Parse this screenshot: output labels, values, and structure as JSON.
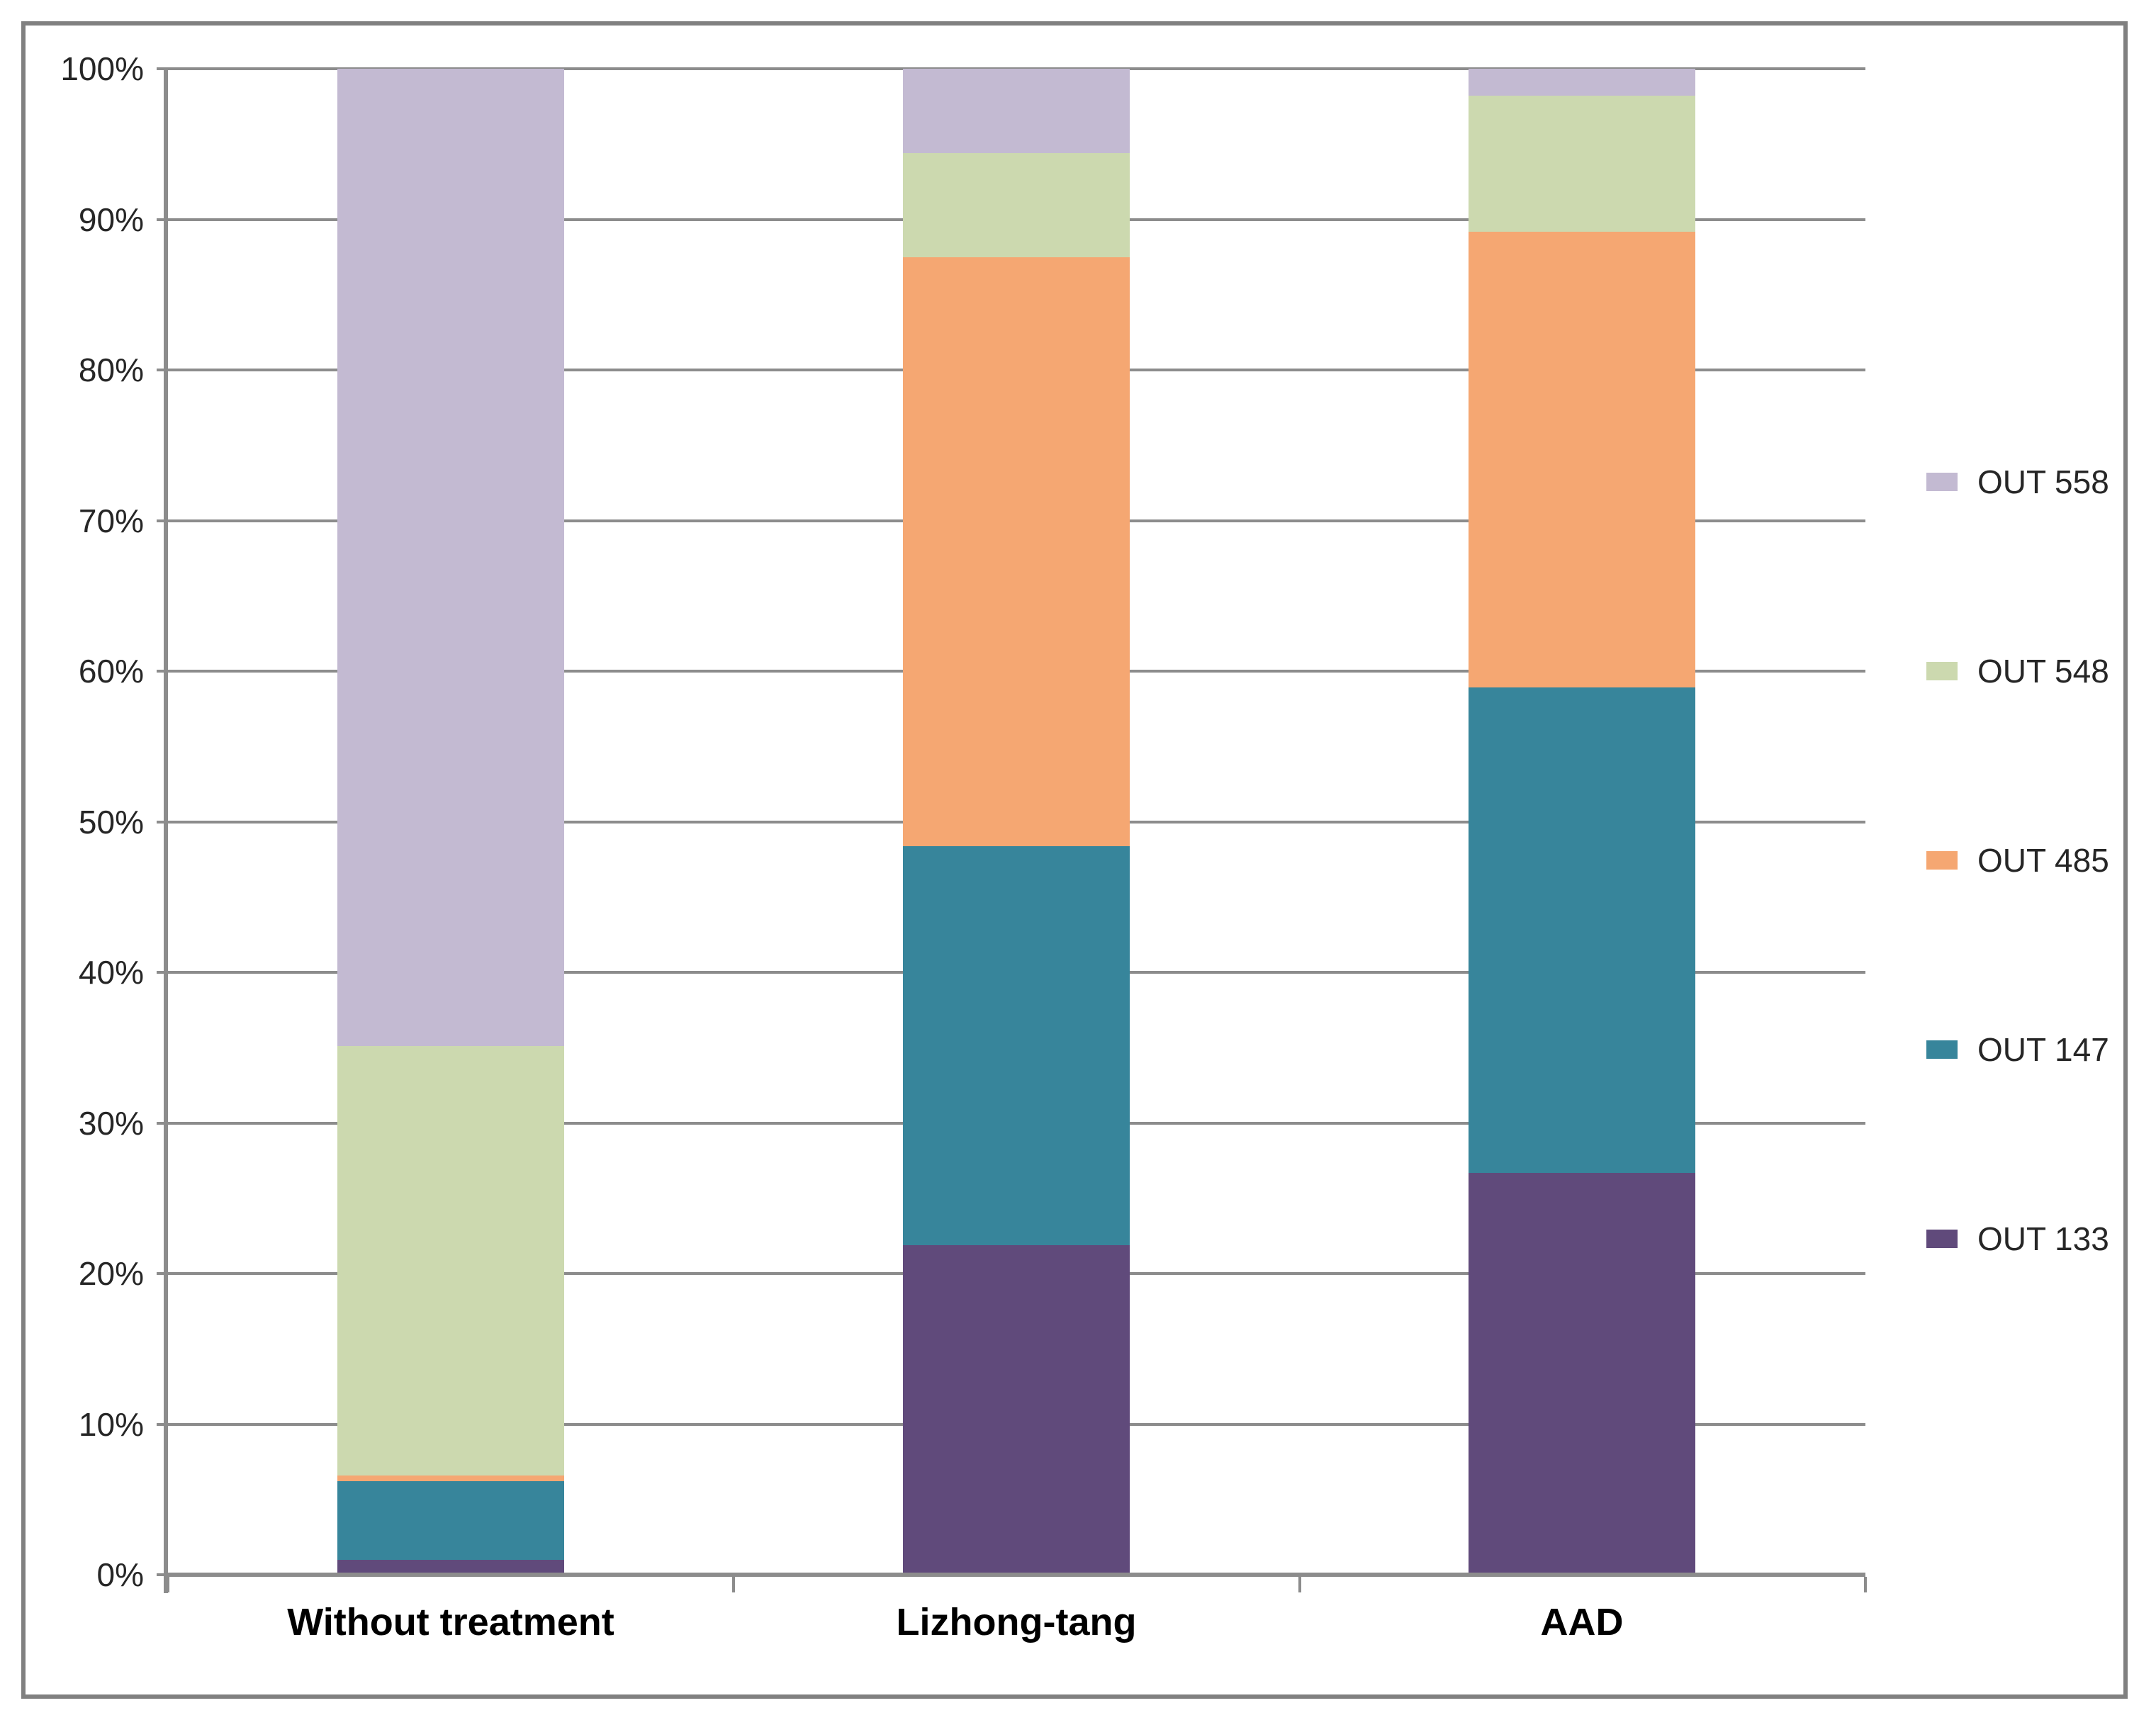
{
  "chart_data": {
    "type": "bar",
    "subtype": "stacked-100-percent-column",
    "title": "",
    "xlabel": "",
    "ylabel": "",
    "categories": [
      "Without treatment",
      "Lizhong-tang",
      "AAD"
    ],
    "series": [
      {
        "name": "OUT 133",
        "color": "#604A7B",
        "values": [
          1.0,
          21.9,
          26.7
        ]
      },
      {
        "name": "OUT 147",
        "color": "#37859B",
        "values": [
          5.2,
          26.5,
          32.2
        ]
      },
      {
        "name": "OUT 485",
        "color": "#F5A772",
        "values": [
          0.4,
          39.1,
          30.3
        ]
      },
      {
        "name": "OUT 548",
        "color": "#CCD9AF",
        "values": [
          28.5,
          6.9,
          9.0
        ]
      },
      {
        "name": "OUT 558",
        "color": "#C3BAD2",
        "values": [
          64.9,
          5.6,
          1.8
        ]
      }
    ],
    "stack_order_bottom_to_top": [
      "OUT 133",
      "OUT 147",
      "OUT 485",
      "OUT 548",
      "OUT 558"
    ],
    "legend_order_top_to_bottom": [
      "OUT 558",
      "OUT 548",
      "OUT 485",
      "OUT 147",
      "OUT 133"
    ],
    "legend_position": "right",
    "y_axis": {
      "min": 0,
      "max": 100,
      "grid": true,
      "ticks": [
        "0%",
        "10%",
        "20%",
        "30%",
        "40%",
        "50%",
        "60%",
        "70%",
        "80%",
        "90%",
        "100%"
      ]
    }
  },
  "styles": {
    "background": "#FFFFFF",
    "border_color": "#808080",
    "grid_color": "#8C8C8C",
    "axis_color": "#8C8C8C",
    "text_color": "#262626",
    "category_text_color": "#000000"
  }
}
